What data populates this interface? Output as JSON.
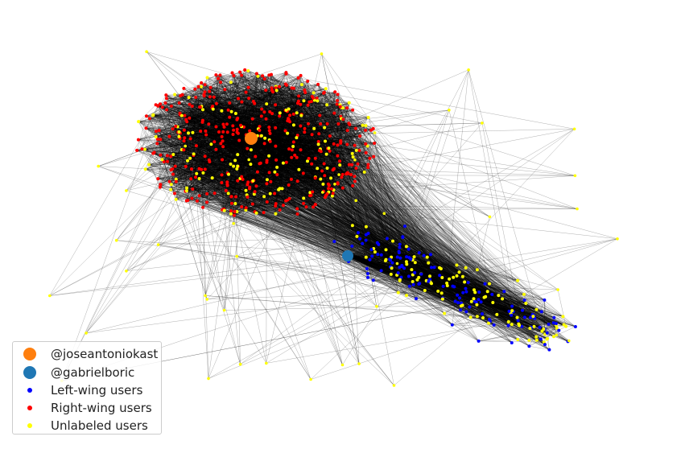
{
  "legend": {
    "items": [
      {
        "label": "@joseantoniokast",
        "color": "#ff7f0e",
        "marker": "large"
      },
      {
        "label": "@gabrielboric",
        "color": "#1f77b4",
        "marker": "large"
      },
      {
        "label": "Left-wing users",
        "color": "#0000ff",
        "marker": "small"
      },
      {
        "label": "Right-wing users",
        "color": "#ff0000",
        "marker": "small"
      },
      {
        "label": "Unlabeled users",
        "color": "#ffff00",
        "marker": "small"
      }
    ]
  },
  "colors": {
    "edge": "#000000",
    "left_wing": "#0000ff",
    "right_wing": "#ff0000",
    "unlabeled": "#ffff00",
    "kast": "#ff7f0e",
    "boric": "#1f77b4"
  }
}
